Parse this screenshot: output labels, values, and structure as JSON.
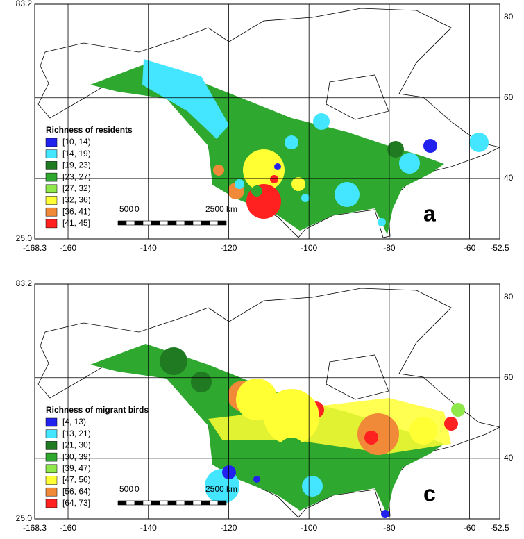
{
  "panels": [
    {
      "letter": "a",
      "xlim": [
        -168.3,
        -52.5
      ],
      "ylim": [
        {
          "value": 25,
          "label": "25.0"
        },
        83.2
      ],
      "xticks": [
        -168.3,
        -160,
        -140,
        -120,
        -100,
        -80,
        -60,
        -52.5
      ],
      "yticks_left": [
        {
          "value": 25,
          "label": "25.0"
        },
        83.2
      ],
      "yticks_right": [
        40,
        60,
        80
      ],
      "legend_title": "Richness of residents",
      "legend": [
        {
          "label": "[10, 14)",
          "color": "#2222ee"
        },
        {
          "label": "[14, 19)",
          "color": "#44e6ff"
        },
        {
          "label": "[19, 23)",
          "color": "#1f7a22"
        },
        {
          "label": "[23, 27)",
          "color": "#2ea82e"
        },
        {
          "label": "[27, 32)",
          "color": "#8ee84a"
        },
        {
          "label": "[32, 36)",
          "color": "#ffff33"
        },
        {
          "label": "[36, 41)",
          "color": "#f08a38"
        },
        {
          "label": "[41, 45]",
          "color": "#ff2020"
        }
      ],
      "scale": [
        "500",
        "0",
        "2500 km"
      ]
    },
    {
      "letter": "c",
      "xlim": [
        -168.3,
        -52.5
      ],
      "ylim": [
        {
          "value": 25,
          "label": "25.0"
        },
        83.2
      ],
      "xticks": [
        -168.3,
        -160,
        -140,
        -120,
        -100,
        -80,
        -60,
        -52.5
      ],
      "yticks_left": [
        {
          "value": 25,
          "label": "25.0"
        },
        83.2
      ],
      "yticks_right": [
        40,
        60,
        80
      ],
      "legend_title": "Richness of migrant birds",
      "legend": [
        {
          "label": "[4, 13)",
          "color": "#2222ee"
        },
        {
          "label": "[13, 21)",
          "color": "#44e6ff"
        },
        {
          "label": "[21, 30)",
          "color": "#1f7a22"
        },
        {
          "label": "[30, 39)",
          "color": "#2ea82e"
        },
        {
          "label": "[39, 47)",
          "color": "#8ee84a"
        },
        {
          "label": "[47, 56)",
          "color": "#ffff33"
        },
        {
          "label": "[56, 64)",
          "color": "#f08a38"
        },
        {
          "label": "[64, 73]",
          "color": "#ff2020"
        }
      ],
      "scale": [
        "500",
        "0",
        "2500 km"
      ]
    }
  ]
}
